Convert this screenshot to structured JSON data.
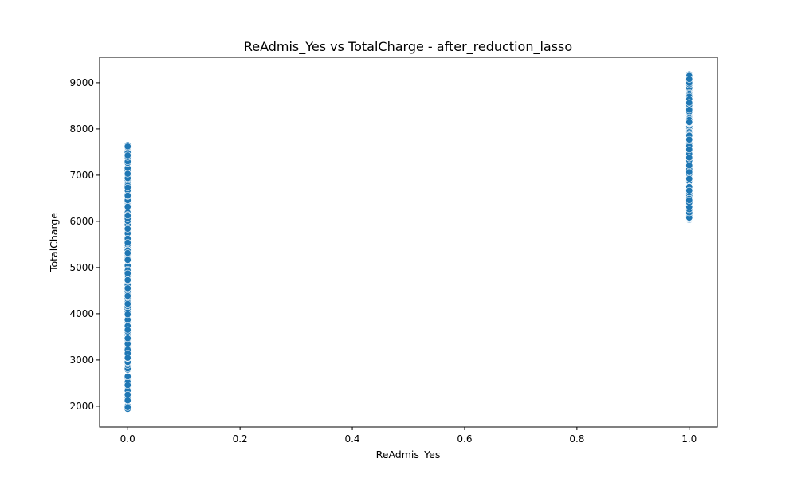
{
  "chart_data": {
    "type": "scatter",
    "title": "ReAdmis_Yes vs TotalCharge - after_reduction_lasso",
    "xlabel": "ReAdmis_Yes",
    "ylabel": "TotalCharge",
    "xlim": [
      -0.05,
      1.05
    ],
    "ylim": [
      1550,
      9550
    ],
    "xticks": [
      0.0,
      0.2,
      0.4,
      0.6,
      0.8,
      1.0
    ],
    "xtick_labels": [
      "0.0",
      "0.2",
      "0.4",
      "0.6",
      "0.8",
      "1.0"
    ],
    "yticks": [
      2000,
      3000,
      4000,
      5000,
      6000,
      7000,
      8000,
      9000
    ],
    "ytick_labels": [
      "2000",
      "3000",
      "4000",
      "5000",
      "6000",
      "7000",
      "8000",
      "9000"
    ],
    "grid": false,
    "series": [
      {
        "color": "#1f77b4",
        "points": [
          {
            "x": 0,
            "y_range": [
              1940,
              7650
            ]
          },
          {
            "x": 1,
            "y_range": [
              6030,
              9180
            ]
          }
        ]
      }
    ]
  }
}
